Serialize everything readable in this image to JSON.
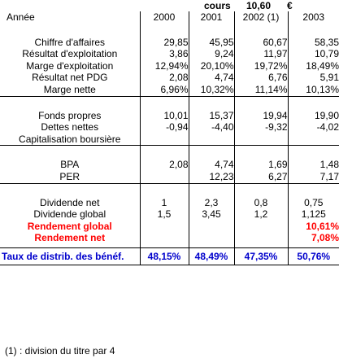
{
  "top": {
    "cours_label": "cours",
    "cours_value": "10,60",
    "currency": "€"
  },
  "header": {
    "label": "Année",
    "years": [
      "2000",
      "2001",
      "2002 (1)",
      "2003"
    ]
  },
  "sections": [
    {
      "rows": [
        {
          "label": "Chiffre d'affaires",
          "values": [
            "29,85",
            "45,95",
            "60,67",
            "58,35"
          ],
          "style": "normal",
          "align": "v"
        },
        {
          "label": "Résultat d'exploitation",
          "values": [
            "3,86",
            "9,24",
            "11,97",
            "10,79"
          ],
          "style": "normal",
          "align": "v"
        },
        {
          "label": "Marge d'exploitation",
          "values": [
            "12,94%",
            "20,10%",
            "19,72%",
            "18,49%"
          ],
          "style": "normal",
          "align": "v"
        },
        {
          "label": "Résultat net PDG",
          "values": [
            "2,08",
            "4,74",
            "6,76",
            "5,91"
          ],
          "style": "normal",
          "align": "v"
        },
        {
          "label": "Marge nette",
          "values": [
            "6,96%",
            "10,32%",
            "11,14%",
            "10,13%"
          ],
          "style": "normal",
          "align": "v"
        }
      ]
    },
    {
      "rows": [
        {
          "label": "Fonds propres",
          "values": [
            "10,01",
            "15,37",
            "19,94",
            "19,90"
          ],
          "style": "normal",
          "align": "v"
        },
        {
          "label": "Dettes nettes",
          "values": [
            "-0,94",
            "-4,40",
            "-9,32",
            "-4,02"
          ],
          "style": "normal",
          "align": "v"
        },
        {
          "label": "Capitalisation boursière",
          "values": [
            "",
            "",
            "",
            ""
          ],
          "style": "normal",
          "align": "v"
        }
      ]
    },
    {
      "rows": [
        {
          "label": "BPA",
          "values": [
            "2,08",
            "4,74",
            "1,69",
            "1,48"
          ],
          "style": "normal",
          "align": "v"
        },
        {
          "label": "PER",
          "values": [
            "",
            "12,23",
            "6,27",
            "7,17"
          ],
          "style": "normal",
          "align": "v"
        }
      ]
    },
    {
      "rows": [
        {
          "label": "Dividende net",
          "values": [
            "1",
            "2,3",
            "0,8",
            "0,75"
          ],
          "style": "normal",
          "align": "c"
        },
        {
          "label": "Dividende global",
          "values": [
            "1,5",
            "3,45",
            "1,2",
            "1,125"
          ],
          "style": "normal",
          "align": "c"
        },
        {
          "label": "Rendement global",
          "values": [
            "",
            "",
            "",
            "10,61%"
          ],
          "style": "red",
          "align": "r"
        },
        {
          "label": "Rendement net",
          "values": [
            "",
            "",
            "",
            "7,08%"
          ],
          "style": "red",
          "align": "r"
        }
      ]
    }
  ],
  "taux": {
    "label": "Taux de distrib. des bénéf.",
    "values": [
      "48,15%",
      "48,49%",
      "47,35%",
      "50,76%"
    ]
  },
  "footnote": "(1) : division du titre par 4"
}
